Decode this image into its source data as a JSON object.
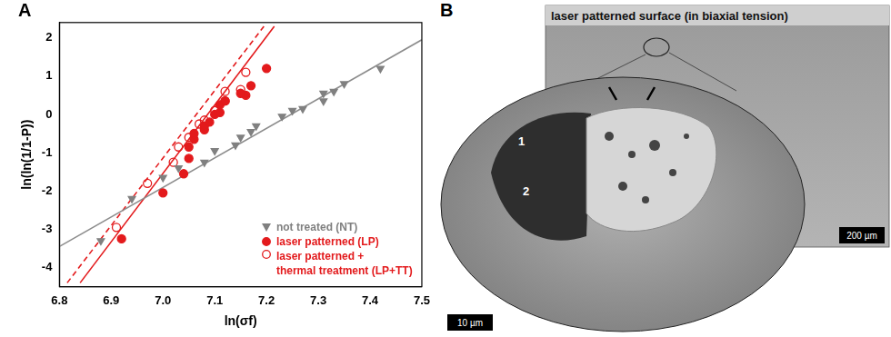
{
  "chart_data": {
    "type": "scatter",
    "x_label": "ln(σf)",
    "y_label": "ln(ln(1/1-P))",
    "xlim": [
      6.8,
      7.5
    ],
    "xticks": [
      6.8,
      6.9,
      {
        "value": 7,
        "label": "7.0"
      },
      7.1,
      7.2,
      7.3,
      7.4,
      7.5
    ],
    "ylim": [
      -4.5,
      2.4
    ],
    "yticks": [
      -4,
      -3,
      -2,
      -1,
      0,
      1,
      2
    ],
    "grid": false,
    "legend": "lower right",
    "series": [
      {
        "name": "not treated (NT)",
        "color": "#808080",
        "marker": "triangle_down",
        "x": [
          6.88,
          6.94,
          7.0,
          7.03,
          7.08,
          7.1,
          7.14,
          7.15,
          7.17,
          7.18,
          7.23,
          7.25,
          7.27,
          7.31,
          7.31,
          7.33,
          7.35,
          7.42
        ],
        "values": [
          -3.3,
          -2.2,
          -1.65,
          -1.4,
          -1.25,
          -0.95,
          -0.8,
          -0.6,
          -0.45,
          -0.3,
          -0.05,
          0.1,
          0.15,
          0.35,
          0.55,
          0.6,
          0.8,
          1.2
        ]
      },
      {
        "name": "laser patterned (LP)",
        "color": "#e31a1c",
        "marker": "circle",
        "x": [
          6.92,
          7.0,
          7.04,
          7.05,
          7.05,
          7.06,
          7.06,
          7.08,
          7.08,
          7.09,
          7.1,
          7.11,
          7.11,
          7.12,
          7.16,
          7.15,
          7.17,
          7.2
        ],
        "values": [
          -3.25,
          -2.05,
          -1.55,
          -1.15,
          -0.85,
          -0.65,
          -0.5,
          -0.4,
          -0.3,
          -0.2,
          0.0,
          0.05,
          0.25,
          0.35,
          0.5,
          0.55,
          0.75,
          1.2
        ]
      },
      {
        "name": "laser patterned + thermal treatment (LP+TT)",
        "color": "#e31a1c",
        "marker": "circle_open",
        "x": [
          6.91,
          6.97,
          7.02,
          7.03,
          7.05,
          7.07,
          7.08,
          7.1,
          7.12,
          7.12,
          7.15,
          7.16
        ],
        "values": [
          -2.95,
          -1.8,
          -1.25,
          -0.85,
          -0.6,
          -0.25,
          -0.15,
          0.1,
          0.35,
          0.6,
          0.65,
          1.1
        ]
      },
      {
        "type": "line",
        "color": "#8c8c8c",
        "line_style": "solid",
        "x": [
          6.8,
          7.5
        ],
        "values": [
          -3.45,
          1.95
        ]
      },
      {
        "type": "line",
        "color": "#e31a1c",
        "line_style": "solid",
        "x": [
          6.84,
          7.215
        ],
        "values": [
          -4.4,
          2.3
        ]
      },
      {
        "type": "line",
        "color": "#e31a1c",
        "line_style": "dashed",
        "x": [
          6.815,
          7.195
        ],
        "values": [
          -4.4,
          2.3
        ]
      }
    ]
  },
  "figure": {
    "panel_labels": [
      "A",
      "B"
    ],
    "image_panel": {
      "overview_caption": "laser patterned surface (in biaxial tension)",
      "overview_scale_bar": "200 µm",
      "detail_markers": [
        "1",
        "2"
      ],
      "detail_scale_bar": "10 µm"
    }
  }
}
